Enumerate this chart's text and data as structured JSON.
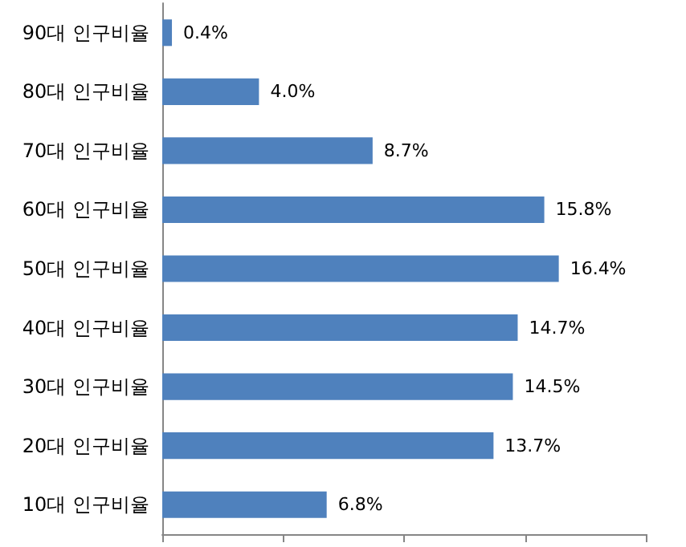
{
  "chart_data": {
    "type": "bar",
    "orientation": "horizontal",
    "categories": [
      "90대 인구비율",
      "80대 인구비율",
      "70대 인구비율",
      "60대 인구비율",
      "50대 인구비율",
      "40대 인구비율",
      "30대 인구비율",
      "20대 인구비율",
      "10대 인구비율"
    ],
    "values": [
      0.4,
      4.0,
      8.7,
      15.8,
      16.4,
      14.7,
      14.5,
      13.7,
      6.8
    ],
    "value_labels": [
      "0.4%",
      "4.0%",
      "8.7%",
      "15.8%",
      "16.4%",
      "14.7%",
      "14.5%",
      "13.7%",
      "6.8%"
    ],
    "color": "#4f81bd",
    "xlim": [
      0,
      20
    ],
    "xticks": [
      {
        "value": 0,
        "label": null
      },
      {
        "value": 5,
        "label": null
      },
      {
        "value": 10,
        "label": null
      },
      {
        "value": 15,
        "label": null
      },
      {
        "value": 20,
        "label": null
      }
    ],
    "tick_labels": "y",
    "grid": false
  }
}
